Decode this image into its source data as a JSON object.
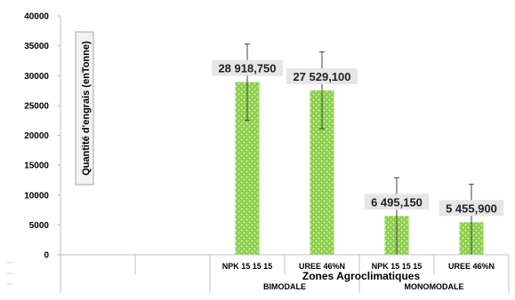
{
  "chart_data": {
    "type": "bar",
    "xlabel": "Zones Agroclimatiques",
    "ylabel": "Quantité d'engrais (enTonne)",
    "ylim": [
      0,
      40000
    ],
    "yticks": [
      0,
      5000,
      10000,
      15000,
      20000,
      25000,
      30000,
      35000,
      40000
    ],
    "categories": [
      "",
      "",
      "NPK 15 15 15",
      "UREE 46%N",
      "NPK 15 15 15",
      "UREE 46%N"
    ],
    "groups": [
      {
        "label": "",
        "span": 2
      },
      {
        "label": "BIMODALE",
        "span": 2
      },
      {
        "label": "MONOMODALE",
        "span": 2
      }
    ],
    "values": [
      null,
      null,
      28918.75,
      27529.1,
      6495.15,
      5455.9
    ],
    "data_labels": [
      "",
      "",
      "28 918,750",
      "27 529,100",
      "6 495,150",
      "5 455,900"
    ],
    "error_bars": [
      null,
      null,
      [
        22500,
        35300
      ],
      [
        21100,
        34000
      ],
      [
        0,
        12900
      ],
      [
        0,
        11800
      ]
    ],
    "bar_color": "#8fd14f",
    "grid": false,
    "legend": "none"
  }
}
